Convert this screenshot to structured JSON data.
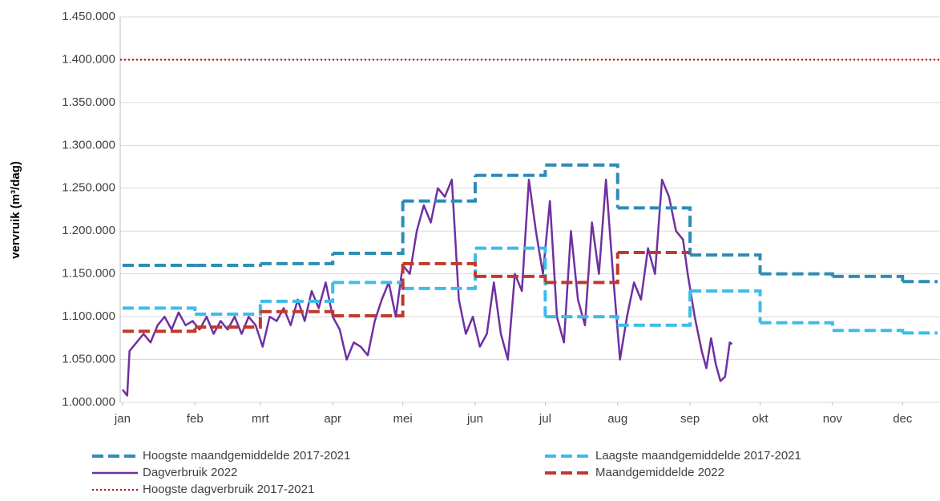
{
  "chart_data": {
    "type": "line",
    "y_label": "vervruik (m³/dag)",
    "ylim": [
      1000000,
      1450000
    ],
    "yticks": [
      {
        "value": 1000000,
        "label": "1.000.000"
      },
      {
        "value": 1050000,
        "label": "1.050.000"
      },
      {
        "value": 1100000,
        "label": "1.100.000"
      },
      {
        "value": 1150000,
        "label": "1.150.000"
      },
      {
        "value": 1200000,
        "label": "1.200.000"
      },
      {
        "value": 1250000,
        "label": "1.250.000"
      },
      {
        "value": 1300000,
        "label": "1.300.000"
      },
      {
        "value": 1350000,
        "label": "1.350.000"
      },
      {
        "value": 1400000,
        "label": "1.400.000"
      },
      {
        "value": 1450000,
        "label": "1.450.000"
      }
    ],
    "xlim": [
      0,
      350
    ],
    "xticks": [
      {
        "value": 1,
        "label": "jan"
      },
      {
        "value": 32,
        "label": "feb"
      },
      {
        "value": 60,
        "label": "mrt"
      },
      {
        "value": 91,
        "label": "apr"
      },
      {
        "value": 121,
        "label": "mei"
      },
      {
        "value": 152,
        "label": "jun"
      },
      {
        "value": 182,
        "label": "jul"
      },
      {
        "value": 213,
        "label": "aug"
      },
      {
        "value": 244,
        "label": "sep"
      },
      {
        "value": 274,
        "label": "okt"
      },
      {
        "value": 305,
        "label": "nov"
      },
      {
        "value": 335,
        "label": "dec"
      }
    ],
    "grid": true,
    "series": [
      {
        "name": "Hoogste maandgemiddelde 2017-2021",
        "color": "#2e8cb5",
        "style": "dashed",
        "step": true,
        "x": [
          1,
          32,
          60,
          91,
          121,
          152,
          182,
          213,
          244,
          274,
          305,
          335
        ],
        "x_end": 350,
        "values": [
          1160000,
          1160000,
          1162000,
          1174000,
          1235000,
          1265000,
          1277000,
          1227000,
          1172000,
          1150000,
          1147000,
          1141000
        ]
      },
      {
        "name": "Laagste maandgemiddelde 2017-2021",
        "color": "#3cbde9",
        "style": "dashed",
        "step": true,
        "x": [
          1,
          32,
          60,
          91,
          121,
          152,
          182,
          213,
          244,
          274,
          305,
          335
        ],
        "x_end": 350,
        "values": [
          1110000,
          1103000,
          1118000,
          1140000,
          1133000,
          1180000,
          1100000,
          1090000,
          1130000,
          1093000,
          1084000,
          1081000
        ]
      },
      {
        "name": "Dagverbruik 2022",
        "color": "#7030a0",
        "style": "solid",
        "step": false,
        "x": [
          1,
          3,
          4,
          7,
          10,
          13,
          16,
          19,
          22,
          25,
          28,
          31,
          34,
          37,
          40,
          43,
          46,
          49,
          52,
          55,
          58,
          61,
          64,
          67,
          70,
          73,
          76,
          79,
          82,
          85,
          88,
          91,
          94,
          97,
          100,
          103,
          106,
          109,
          112,
          115,
          118,
          121,
          124,
          127,
          130,
          133,
          136,
          139,
          142,
          145,
          148,
          151,
          154,
          157,
          160,
          163,
          166,
          169,
          172,
          175,
          178,
          181,
          184,
          187,
          190,
          193,
          196,
          199,
          202,
          205,
          208,
          211,
          214,
          217,
          220,
          223,
          226,
          229,
          232,
          235,
          238,
          241,
          243,
          246,
          249,
          251,
          253,
          255,
          257,
          259,
          261,
          262
        ],
        "values": [
          1015000,
          1008000,
          1060000,
          1070000,
          1080000,
          1070000,
          1090000,
          1100000,
          1085000,
          1105000,
          1090000,
          1095000,
          1085000,
          1100000,
          1080000,
          1095000,
          1085000,
          1100000,
          1080000,
          1100000,
          1090000,
          1065000,
          1100000,
          1095000,
          1110000,
          1090000,
          1120000,
          1095000,
          1130000,
          1110000,
          1140000,
          1100000,
          1085000,
          1050000,
          1070000,
          1065000,
          1055000,
          1095000,
          1120000,
          1140000,
          1100000,
          1160000,
          1150000,
          1200000,
          1230000,
          1210000,
          1250000,
          1240000,
          1260000,
          1120000,
          1080000,
          1100000,
          1065000,
          1080000,
          1140000,
          1080000,
          1050000,
          1150000,
          1130000,
          1260000,
          1200000,
          1150000,
          1235000,
          1100000,
          1070000,
          1200000,
          1120000,
          1090000,
          1210000,
          1150000,
          1260000,
          1150000,
          1050000,
          1100000,
          1140000,
          1120000,
          1180000,
          1150000,
          1260000,
          1240000,
          1200000,
          1190000,
          1150000,
          1100000,
          1060000,
          1040000,
          1075000,
          1045000,
          1025000,
          1030000,
          1070000,
          1068000
        ]
      },
      {
        "name": "Maandgemiddelde 2022",
        "color": "#c0392b",
        "style": "dashed",
        "step": true,
        "x": [
          1,
          32,
          60,
          91,
          121,
          152,
          182,
          213
        ],
        "x_end": 244,
        "values": [
          1083000,
          1088000,
          1106000,
          1101000,
          1162000,
          1147000,
          1140000,
          1175000
        ]
      }
    ],
    "reference_line": {
      "name": "Hoogste dagverbruik 2017-2021",
      "color": "#c00000",
      "style": "dotted",
      "value": 1400000
    }
  }
}
